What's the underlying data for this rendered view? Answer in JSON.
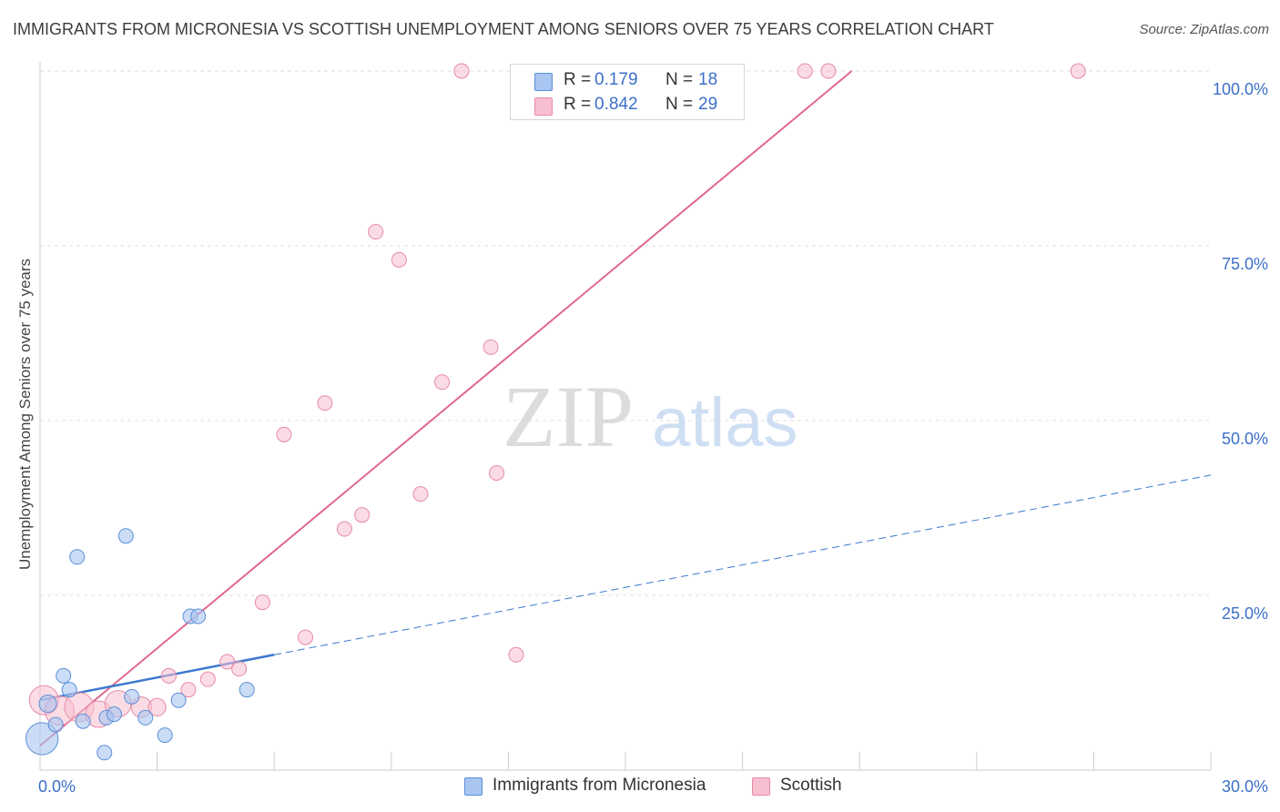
{
  "header": {
    "title": "IMMIGRANTS FROM MICRONESIA VS SCOTTISH UNEMPLOYMENT AMONG SENIORS OVER 75 YEARS CORRELATION CHART",
    "source": "Source: ZipAtlas.com"
  },
  "watermark": {
    "zip": "ZIP",
    "atlas": "atlas"
  },
  "legend": {
    "r_label": "R =",
    "n_label": "N =",
    "rows": [
      {
        "r": "0.179",
        "n": "18"
      },
      {
        "r": "0.842",
        "n": "29"
      }
    ]
  },
  "colors": {
    "micronesia_fill": "#a8c6f0",
    "micronesia_stroke": "#5b8fd8",
    "micronesia_line": "#3b78d0",
    "scottish_fill": "#f7c0d0",
    "scottish_stroke": "#e68aa6",
    "scottish_line": "#e0688f",
    "tick_label": "#3b6fc9"
  },
  "chart_data": {
    "type": "scatter",
    "title": "IMMIGRANTS FROM MICRONESIA VS SCOTTISH UNEMPLOYMENT AMONG SENIORS OVER 75 YEARS CORRELATION CHART",
    "xlabel": "",
    "ylabel": "Unemployment Among Seniors over 75 years",
    "xlim": [
      0,
      30
    ],
    "ylim": [
      0,
      100
    ],
    "x_tick_labels": [
      {
        "value": 0,
        "label": "0.0%"
      },
      {
        "value": 30,
        "label": "30.0%"
      }
    ],
    "y_tick_labels": [
      {
        "value": 25,
        "label": "25.0%"
      },
      {
        "value": 50,
        "label": "50.0%"
      },
      {
        "value": 75,
        "label": "75.0%"
      },
      {
        "value": 100,
        "label": "100.0%"
      }
    ],
    "series": [
      {
        "name": "Immigrants from Micronesia",
        "points": [
          {
            "x": 0.05,
            "y": 4.5,
            "size": 2.2
          },
          {
            "x": 0.2,
            "y": 9.5,
            "size": 1.2
          },
          {
            "x": 0.4,
            "y": 6.5,
            "size": 1
          },
          {
            "x": 0.6,
            "y": 13.5,
            "size": 1
          },
          {
            "x": 0.75,
            "y": 11.5,
            "size": 1
          },
          {
            "x": 0.95,
            "y": 30.5,
            "size": 1
          },
          {
            "x": 1.1,
            "y": 7.0,
            "size": 1
          },
          {
            "x": 1.65,
            "y": 2.5,
            "size": 1
          },
          {
            "x": 1.7,
            "y": 7.5,
            "size": 1
          },
          {
            "x": 1.9,
            "y": 8.0,
            "size": 1
          },
          {
            "x": 2.2,
            "y": 33.5,
            "size": 1
          },
          {
            "x": 2.35,
            "y": 10.5,
            "size": 1
          },
          {
            "x": 2.7,
            "y": 7.5,
            "size": 1
          },
          {
            "x": 3.2,
            "y": 5.0,
            "size": 1
          },
          {
            "x": 3.55,
            "y": 10.0,
            "size": 1
          },
          {
            "x": 3.85,
            "y": 22.0,
            "size": 1
          },
          {
            "x": 4.05,
            "y": 22.0,
            "size": 1
          },
          {
            "x": 5.3,
            "y": 11.5,
            "size": 1
          }
        ],
        "trend": {
          "solid": [
            [
              0,
              10.0
            ],
            [
              6.0,
              16.5
            ]
          ],
          "dashed": [
            [
              6.0,
              16.5
            ],
            [
              30.0,
              42.2
            ]
          ]
        }
      },
      {
        "name": "Scottish",
        "points": [
          {
            "x": 0.1,
            "y": 10.0,
            "size": 2.0
          },
          {
            "x": 0.5,
            "y": 8.5,
            "size": 2.0
          },
          {
            "x": 1.0,
            "y": 9.0,
            "size": 2.0
          },
          {
            "x": 1.5,
            "y": 8.0,
            "size": 1.8
          },
          {
            "x": 2.0,
            "y": 9.5,
            "size": 1.8
          },
          {
            "x": 2.6,
            "y": 9.0,
            "size": 1.4
          },
          {
            "x": 3.0,
            "y": 9.0,
            "size": 1.2
          },
          {
            "x": 3.3,
            "y": 13.5,
            "size": 1
          },
          {
            "x": 3.8,
            "y": 11.5,
            "size": 1
          },
          {
            "x": 4.3,
            "y": 13.0,
            "size": 1
          },
          {
            "x": 4.8,
            "y": 15.5,
            "size": 1
          },
          {
            "x": 5.1,
            "y": 14.5,
            "size": 1
          },
          {
            "x": 5.7,
            "y": 24.0,
            "size": 1
          },
          {
            "x": 6.25,
            "y": 48.0,
            "size": 1
          },
          {
            "x": 6.8,
            "y": 19.0,
            "size": 1
          },
          {
            "x": 7.3,
            "y": 52.5,
            "size": 1
          },
          {
            "x": 7.8,
            "y": 34.5,
            "size": 1
          },
          {
            "x": 8.25,
            "y": 36.5,
            "size": 1
          },
          {
            "x": 8.6,
            "y": 77.0,
            "size": 1
          },
          {
            "x": 9.2,
            "y": 73.0,
            "size": 1
          },
          {
            "x": 9.75,
            "y": 39.5,
            "size": 1
          },
          {
            "x": 10.3,
            "y": 55.5,
            "size": 1
          },
          {
            "x": 10.8,
            "y": 100.0,
            "size": 1
          },
          {
            "x": 11.55,
            "y": 60.5,
            "size": 1
          },
          {
            "x": 11.7,
            "y": 42.5,
            "size": 1
          },
          {
            "x": 12.2,
            "y": 16.5,
            "size": 1
          },
          {
            "x": 19.6,
            "y": 100.0,
            "size": 1
          },
          {
            "x": 20.2,
            "y": 100.0,
            "size": 1
          },
          {
            "x": 26.6,
            "y": 100.0,
            "size": 1
          }
        ],
        "trend": {
          "solid": [
            [
              0,
              3.5
            ],
            [
              20.8,
              100.0
            ]
          ]
        }
      }
    ],
    "legend_labels": [
      "Immigrants from Micronesia",
      "Scottish"
    ]
  }
}
